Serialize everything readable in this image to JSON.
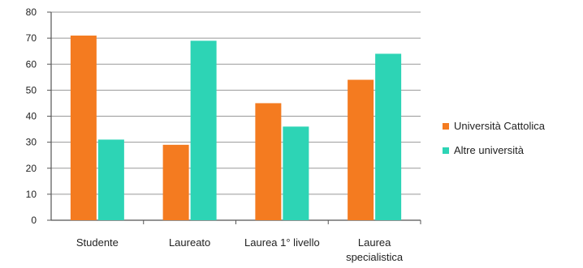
{
  "chart_data": {
    "type": "bar",
    "categories": [
      [
        "Studente"
      ],
      [
        "Laureato"
      ],
      [
        "Laurea 1° livello"
      ],
      [
        "Laurea",
        "specialistica"
      ]
    ],
    "series": [
      {
        "name": "Università Cattolica",
        "values": [
          71,
          29,
          45,
          54
        ],
        "color": "#F47B20"
      },
      {
        "name": "Altre università",
        "values": [
          31,
          69,
          36,
          64
        ],
        "color": "#2DD4B5"
      }
    ],
    "ylim": [
      0,
      80
    ],
    "yticks": [
      0,
      10,
      20,
      30,
      40,
      50,
      60,
      70,
      80
    ],
    "title": "",
    "xlabel": "",
    "ylabel": "",
    "grid": true,
    "legend_position": "right"
  }
}
